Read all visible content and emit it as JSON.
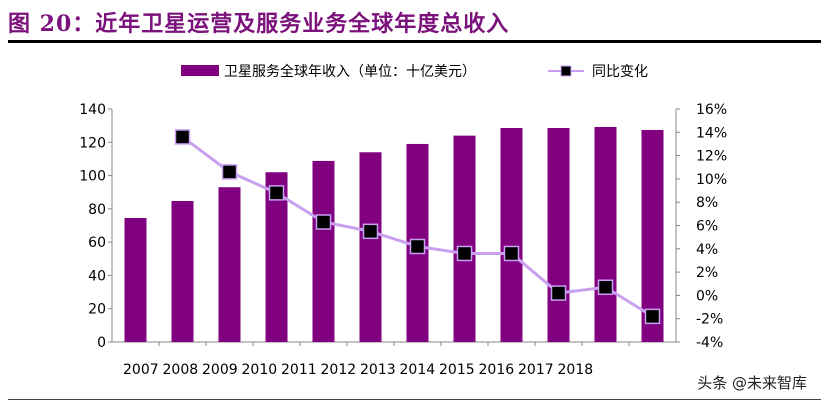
{
  "title": "图 20：近年卫星运营及服务业务全球年度总收入",
  "watermark": "头条 @未来智库",
  "chart_data": {
    "type": "bar+line",
    "categories": [
      "2007",
      "2008",
      "2009",
      "2010",
      "2011",
      "2012",
      "2013",
      "2014",
      "2015",
      "2016",
      "2017",
      "2018"
    ],
    "series": [
      {
        "name": "卫星服务全球年收入（单位：十亿美元）",
        "type": "bar",
        "axis": "left",
        "color": "#800080",
        "values": [
          74.5,
          84.7,
          93,
          102,
          108.8,
          114,
          119,
          124,
          128.6,
          128.6,
          129.2,
          127.4
        ]
      },
      {
        "name": "同比变化",
        "type": "line",
        "axis": "right",
        "color": "#c9a0f0",
        "marker_color": "#000000",
        "values": [
          null,
          13.6,
          10.6,
          8.8,
          6.3,
          5.5,
          4.2,
          3.6,
          3.6,
          0.2,
          0.7,
          -1.8
        ]
      }
    ],
    "left_axis": {
      "min": 0,
      "max": 140,
      "ticks": [
        "0",
        "20",
        "40",
        "60",
        "80",
        "100",
        "120",
        "140"
      ]
    },
    "right_axis": {
      "min": -4,
      "max": 16,
      "ticks": [
        "-4%",
        "-2%",
        "0%",
        "2%",
        "4%",
        "6%",
        "8%",
        "10%",
        "12%",
        "14%",
        "16%"
      ]
    },
    "legend": "top",
    "grid": false
  }
}
